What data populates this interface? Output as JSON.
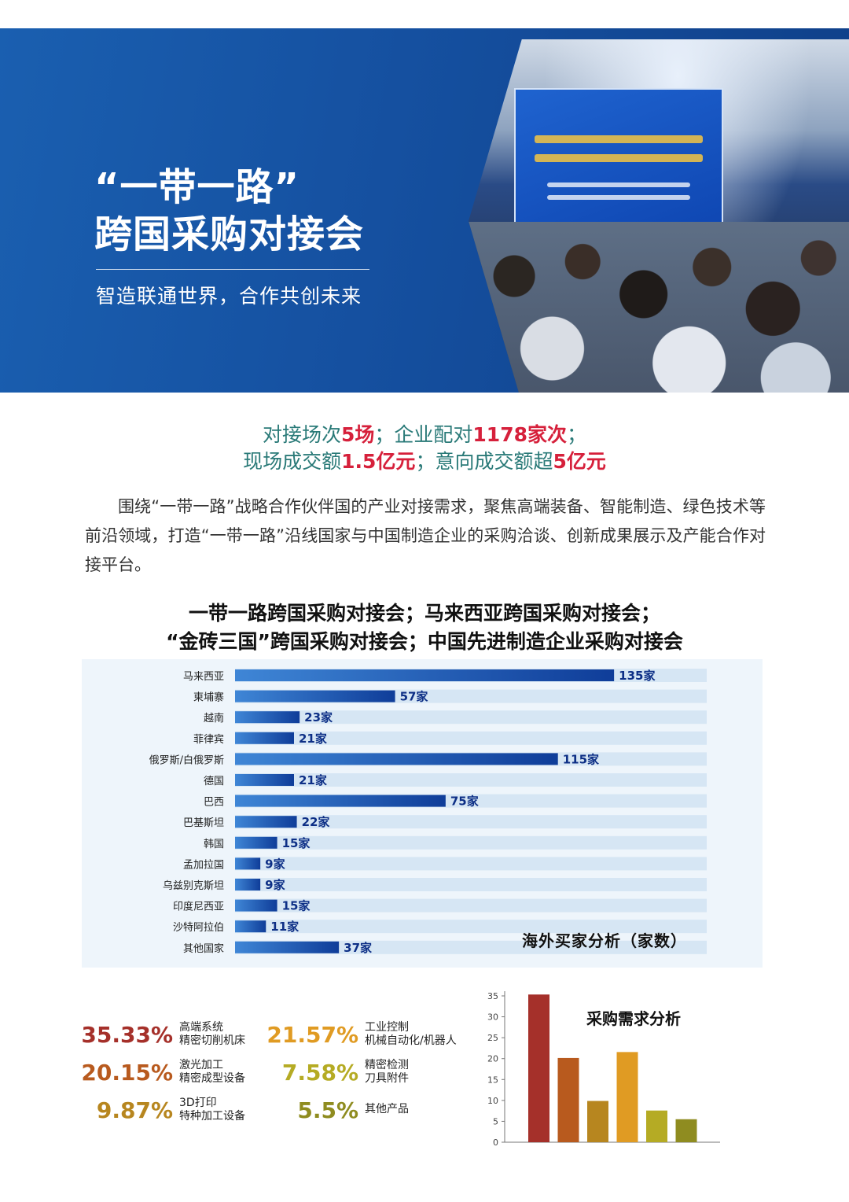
{
  "hero": {
    "title_line1": "“一带一路”",
    "title_line2": "跨国采购对接会",
    "subtitle": "智造联通世界，合作共创未来"
  },
  "stats": {
    "line1": [
      {
        "text": "对接场次",
        "hl": false
      },
      {
        "text": "5场",
        "hl": true
      },
      {
        "text": "；企业配对",
        "hl": false
      },
      {
        "text": "1178家次",
        "hl": true
      },
      {
        "text": "；",
        "hl": false
      }
    ],
    "line2": [
      {
        "text": "现场成交额",
        "hl": false
      },
      {
        "text": "1.5亿元",
        "hl": true
      },
      {
        "text": "；意向成交额超",
        "hl": false
      },
      {
        "text": "5亿元",
        "hl": true
      }
    ]
  },
  "intro": "围绕“一带一路”战略合作伙伴国的产业对接需求，聚焦高端装备、智能制造、绿色技术等前沿领域，打造“一带一路”沿线国家与中国制造企业的采购洽谈、创新成果展示及产能合作对接平台。",
  "events": {
    "line1": "一带一路跨国采购对接会；马来西亚跨国采购对接会；",
    "line2": "“金砖三国”跨国采购对接会；中国先进制造企业采购对接会"
  },
  "colors": {
    "hero_blue": "#1550a0",
    "stat_teal": "#2a7a78",
    "stat_red": "#d6203b",
    "bar_dark": "#0f3d99",
    "bar_light": "#3f86d6"
  },
  "chart_data": [
    {
      "type": "bar",
      "orientation": "horizontal",
      "title": "海外买家分析（家数）",
      "categories": [
        "马来西亚",
        "柬埔寨",
        "越南",
        "菲律宾",
        "俄罗斯/白俄罗斯",
        "德国",
        "巴西",
        "巴基斯坦",
        "韩国",
        "孟加拉国",
        "乌兹别克斯坦",
        "印度尼西亚",
        "沙特阿拉伯",
        "其他国家"
      ],
      "values": [
        135,
        57,
        23,
        21,
        115,
        21,
        75,
        22,
        15,
        9,
        9,
        15,
        11,
        37
      ],
      "value_labels": [
        "135家",
        "57家",
        "23家",
        "21家",
        "115家",
        "21家",
        "75家",
        "22家",
        "15家",
        "9家",
        "9家",
        "15家",
        "11家",
        "37家"
      ],
      "xlim": [
        0,
        168
      ]
    },
    {
      "type": "bar",
      "title": "采购需求分析",
      "categories": [
        "高端系统 精密切削机床",
        "激光加工 精密成型设备",
        "3D打印 特种加工设备",
        "工业控制 机械自动化/机器人",
        "精密检测 刀具附件",
        "其他产品"
      ],
      "values": [
        35.33,
        20.15,
        9.87,
        21.57,
        7.58,
        5.5
      ],
      "percent_labels": [
        "35.33%",
        "20.15%",
        "9.87%",
        "21.57%",
        "7.58%",
        "5.5%"
      ],
      "label_line1": [
        "高端系统",
        "激光加工",
        "3D打印",
        "工业控制",
        "精密检测",
        "其他产品"
      ],
      "label_line2": [
        "精密切削机床",
        "精密成型设备",
        "特种加工设备",
        "机械自动化/机器人",
        "刀具附件",
        ""
      ],
      "colors": [
        "#a5302a",
        "#b85a1e",
        "#b7861f",
        "#e09b23",
        "#b5ab24",
        "#8f8c20"
      ],
      "yticks": [
        "0",
        "5",
        "10",
        "15",
        "20",
        "25",
        "30",
        "35"
      ],
      "ylim": [
        0,
        35
      ]
    }
  ]
}
